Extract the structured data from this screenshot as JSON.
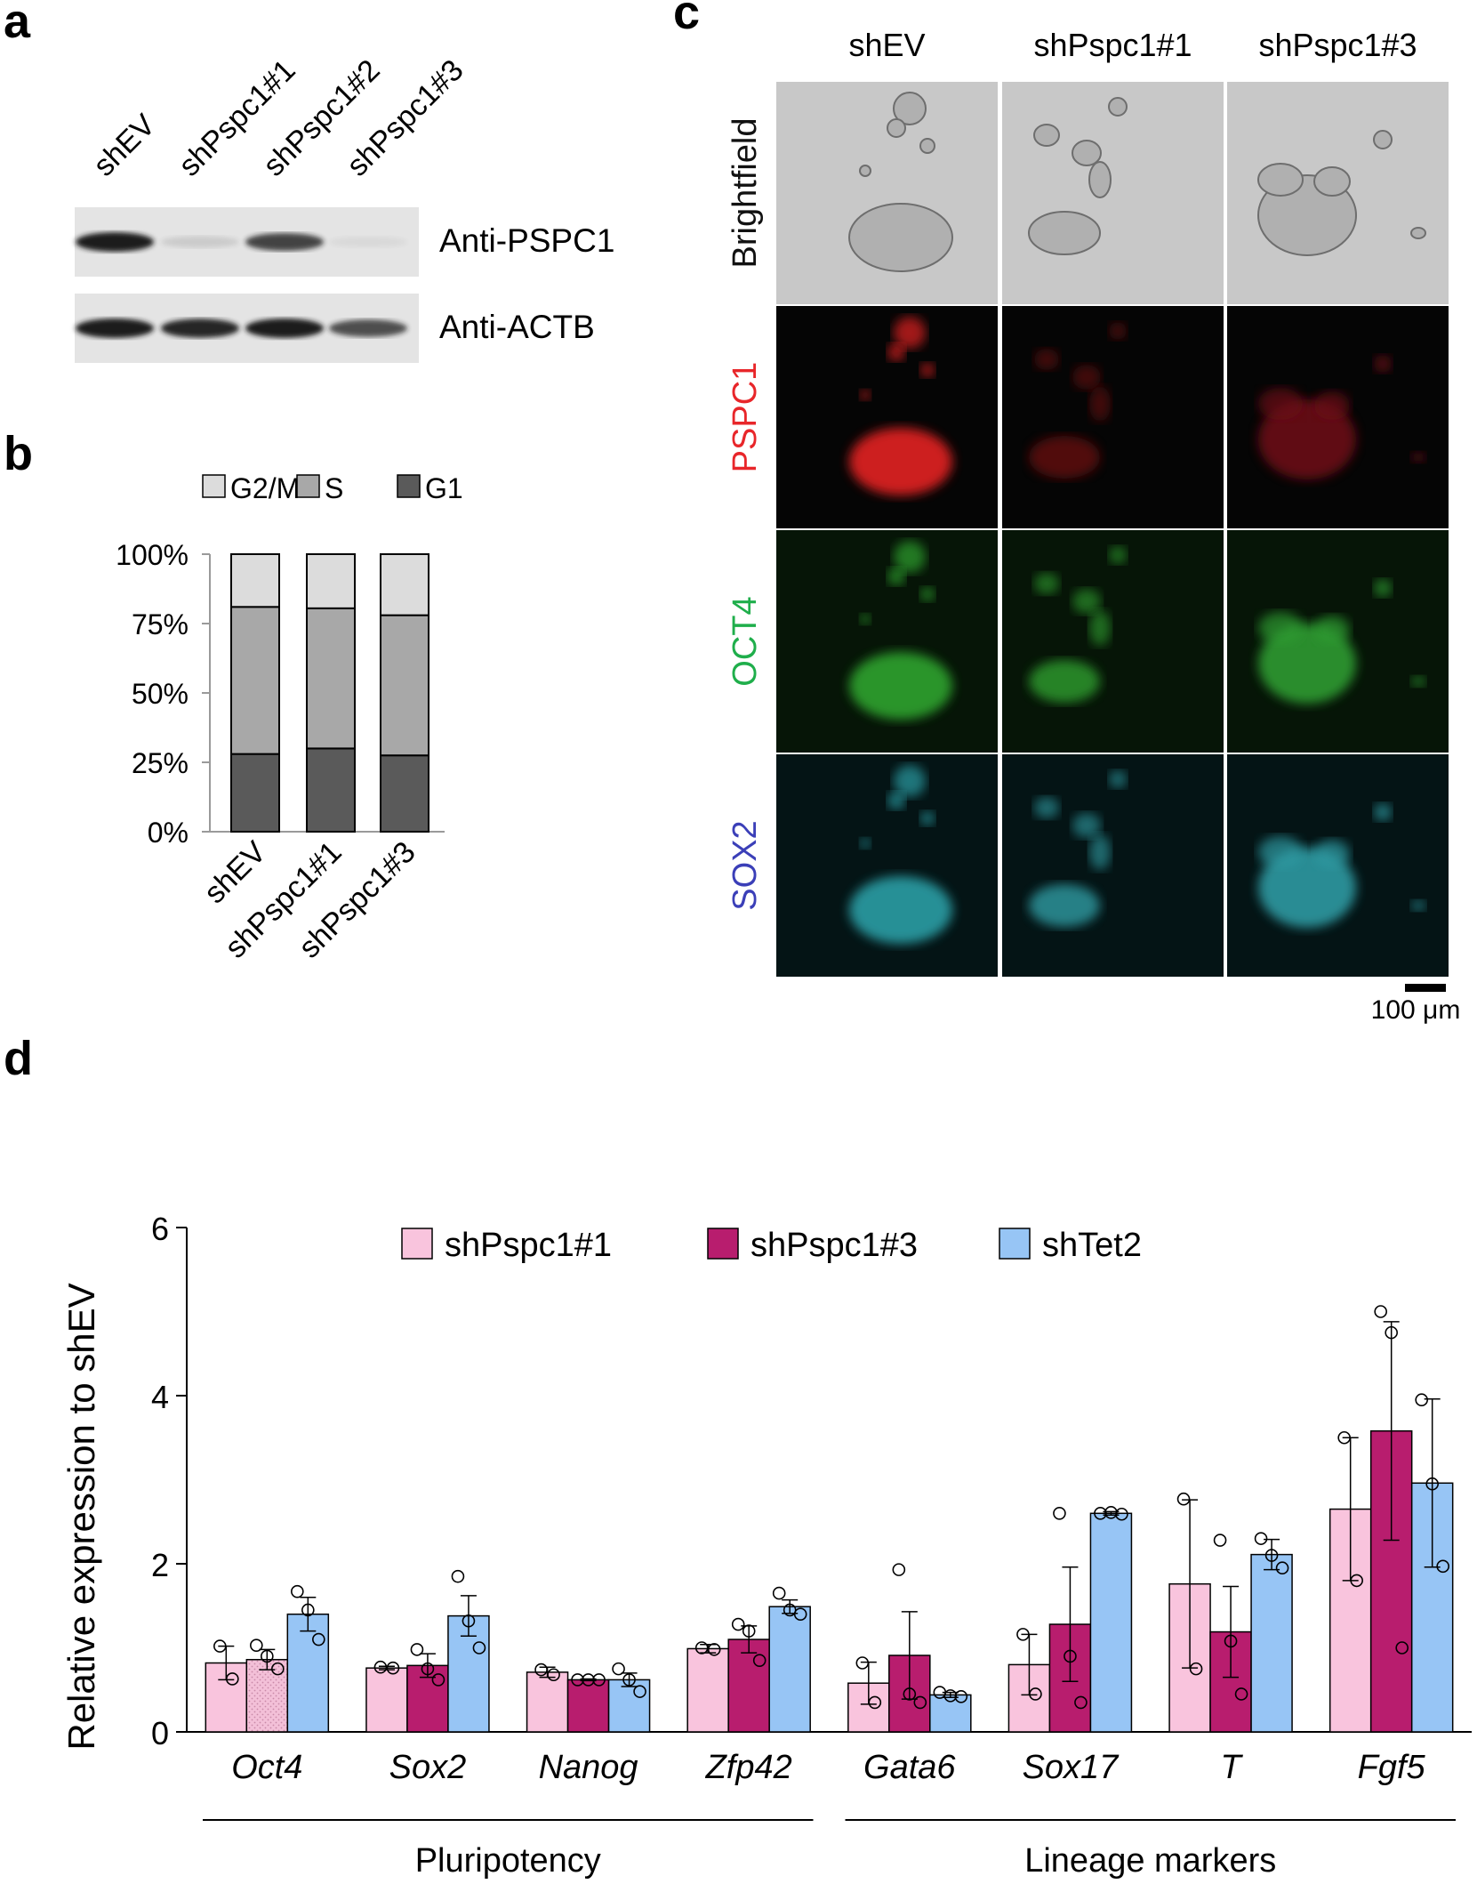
{
  "panels": {
    "a": {
      "label": "a",
      "lanes": [
        "shEV",
        "shPspc1#1",
        "shPspc1#2",
        "shPspc1#3"
      ],
      "blots": [
        {
          "label": "Anti-PSPC1",
          "band_intensity": [
            1.0,
            0.12,
            0.8,
            0.05
          ]
        },
        {
          "label": "Anti-ACTB",
          "band_intensity": [
            1.0,
            0.95,
            1.0,
            0.75
          ]
        }
      ]
    },
    "b": {
      "label": "b",
      "chart_data": {
        "type": "bar",
        "stacked": true,
        "categories": [
          "shEV",
          "shPspc1#1",
          "shPspc1#3"
        ],
        "series": [
          {
            "name": "G1",
            "color": "#5a5a5a",
            "values": [
              28,
              30,
              27.5
            ]
          },
          {
            "name": "S",
            "color": "#a8a8a8",
            "values": [
              53,
              50.5,
              50.5
            ]
          },
          {
            "name": "G2/M",
            "color": "#dcdcdc",
            "values": [
              19,
              19.5,
              22
            ]
          }
        ],
        "legend_order": [
          "G2/M",
          "S",
          "G1"
        ],
        "y_ticks": [
          "0%",
          "25%",
          "50%",
          "75%",
          "100%"
        ],
        "ylim": [
          0,
          100
        ],
        "legend": "top"
      }
    },
    "c": {
      "label": "c",
      "columns": [
        "shEV",
        "shPspc1#1",
        "shPspc1#3"
      ],
      "rows": [
        {
          "label": "Brightfield",
          "color": "#111111"
        },
        {
          "label": "PSPC1",
          "color": "#e8262a"
        },
        {
          "label": "OCT4",
          "color": "#1fae4b"
        },
        {
          "label": "SOX2",
          "color": "#3b3fb8"
        }
      ],
      "scale_bar": "100 μm"
    },
    "d": {
      "label": "d",
      "chart_data": {
        "type": "bar",
        "categories": [
          "Oct4",
          "Sox2",
          "Nanog",
          "Zfp42",
          "Gata6",
          "Sox17",
          "T",
          "Fgf5"
        ],
        "ylabel": "Relative expression to shEV",
        "ylim": [
          0,
          6
        ],
        "y_ticks": [
          "0",
          "2",
          "4",
          "6"
        ],
        "legend": "top",
        "series": [
          {
            "name": "shPspc1#1",
            "color": "#f9c4dd",
            "values": [
              0.82,
              0.76,
              0.71,
              0.99,
              0.58,
              0.8,
              1.76,
              2.65
            ],
            "errors": [
              0.2,
              0.02,
              0.06,
              0.05,
              0.25,
              0.36,
              1.0,
              0.85
            ],
            "points": [
              [
                1.02,
                0.63
              ],
              [
                0.77,
                0.76
              ],
              [
                0.74,
                0.68
              ],
              [
                1.0,
                0.98
              ],
              [
                0.82,
                0.35
              ],
              [
                1.16,
                0.45
              ],
              [
                2.77,
                0.75
              ],
              [
                3.5,
                1.8
              ]
            ]
          },
          {
            "name": "shPspc1#3",
            "color": "#b81d6e",
            "values": [
              0.86,
              0.79,
              0.62,
              1.1,
              0.91,
              1.28,
              1.19,
              3.58
            ],
            "errors": [
              0.12,
              0.14,
              0.01,
              0.16,
              0.52,
              0.68,
              0.54,
              1.3
            ],
            "points": [
              [
                1.03,
                0.9,
                0.75
              ],
              [
                0.98,
                0.75,
                0.62
              ],
              [
                0.62,
                0.62,
                0.62
              ],
              [
                1.28,
                1.2,
                0.85
              ],
              [
                1.93,
                0.45,
                0.35
              ],
              [
                2.6,
                0.9,
                0.35
              ],
              [
                2.28,
                1.08,
                0.45
              ],
              [
                5.0,
                4.75,
                1.0
              ]
            ]
          },
          {
            "name": "shTet2",
            "color": "#97c5f5",
            "values": [
              1.4,
              1.38,
              0.62,
              1.49,
              0.44,
              2.6,
              2.11,
              2.96
            ],
            "errors": [
              0.2,
              0.24,
              0.08,
              0.08,
              0.03,
              0.02,
              0.18,
              1.0
            ],
            "points": [
              [
                1.67,
                1.45,
                1.1
              ],
              [
                1.85,
                1.32,
                1.0
              ],
              [
                0.75,
                0.62,
                0.48
              ],
              [
                1.65,
                1.45,
                1.4
              ],
              [
                0.47,
                0.43,
                0.42
              ],
              [
                2.6,
                2.61,
                2.59
              ],
              [
                2.3,
                2.1,
                1.95
              ],
              [
                3.95,
                2.95,
                1.97
              ]
            ]
          }
        ],
        "groups": [
          {
            "label": "Pluripotency",
            "from": 0,
            "to": 3
          },
          {
            "label": "Lineage markers",
            "from": 4,
            "to": 7
          }
        ]
      }
    }
  }
}
